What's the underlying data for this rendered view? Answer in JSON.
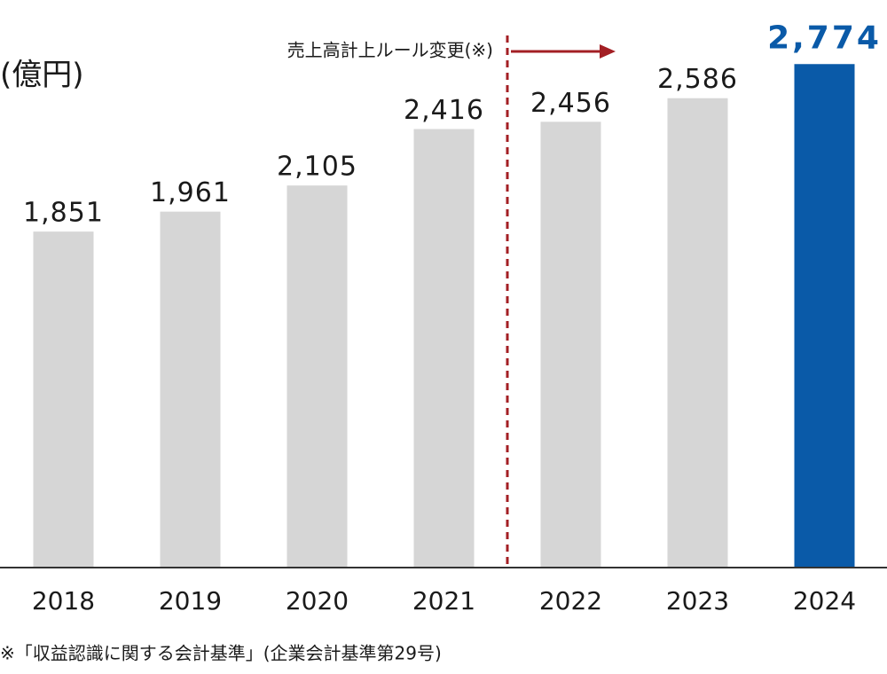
{
  "chart_data": {
    "type": "bar",
    "unit_label": "(億円)",
    "categories": [
      "2018",
      "2019",
      "2020",
      "2021",
      "2022",
      "2023",
      "2024"
    ],
    "values": [
      1851,
      1961,
      2105,
      2416,
      2456,
      2586,
      2774
    ],
    "value_labels": [
      "1,851",
      "1,961",
      "2,105",
      "2,416",
      "2,456",
      "2,586",
      "2,774"
    ],
    "colors": [
      "#d6d6d6",
      "#d6d6d6",
      "#d6d6d6",
      "#d6d6d6",
      "#d6d6d6",
      "#d6d6d6",
      "#0a5aa8"
    ],
    "label_colors": [
      "#1a1a1a",
      "#1a1a1a",
      "#1a1a1a",
      "#1a1a1a",
      "#1a1a1a",
      "#1a1a1a",
      "#0a5aa8"
    ],
    "ylim": [
      0,
      3000
    ],
    "rule_change": {
      "text": "売上高計上ルール変更(※)",
      "from_category": "2022",
      "color": "#a31f24"
    },
    "footnote": "※「収益認識に関する会計基準」(企業会計基準第29号)"
  }
}
